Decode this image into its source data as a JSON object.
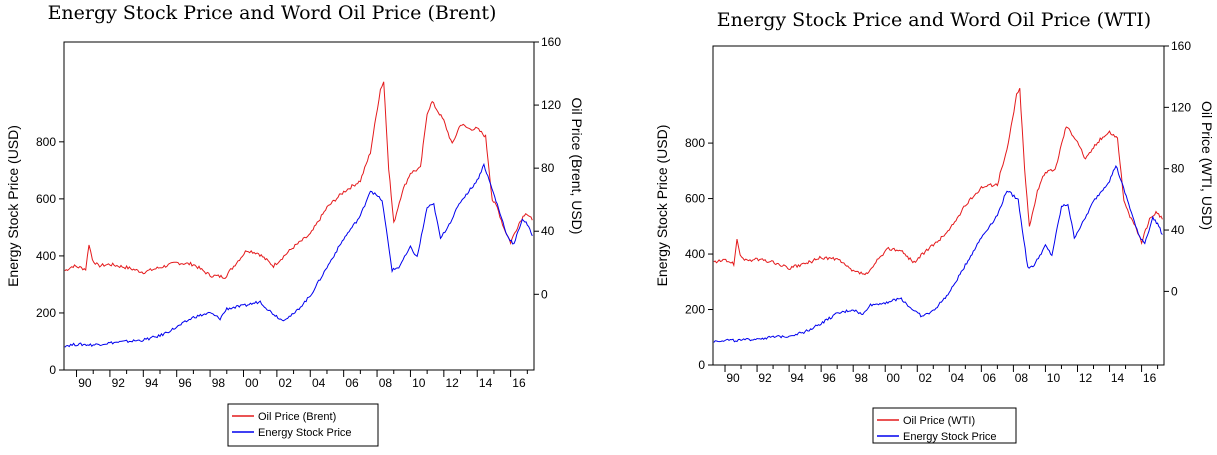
{
  "colors": {
    "oil": "#e41a1c",
    "stock": "#0000ee",
    "frame": "#000000"
  },
  "chart_data": [
    {
      "type": "line",
      "title": "Energy Stock Price and Word Oil Price (Brent)",
      "ylabel": "Energy Stock Price (USD)",
      "y2label": "Oil Price (Brent, USD)",
      "x_ticks": [
        "90",
        "92",
        "94",
        "96",
        "98",
        "00",
        "02",
        "04",
        "06",
        "08",
        "10",
        "12",
        "14",
        "16"
      ],
      "y_ticks": [
        "0",
        "200",
        "400",
        "600",
        "800"
      ],
      "y2_ticks": [
        "0",
        "40",
        "80",
        "120",
        "160"
      ],
      "ylim": [
        0,
        1150
      ],
      "y2lim": [
        -48,
        160
      ],
      "xlim": [
        1989.25,
        2017.4
      ],
      "legend_position": "bottom",
      "series": [
        {
          "name": "Oil Price (Brent)",
          "axis": "right",
          "points": [
            [
              1989.3,
              15
            ],
            [
              1989.8,
              18
            ],
            [
              1990.2,
              17
            ],
            [
              1990.55,
              16
            ],
            [
              1990.75,
              32
            ],
            [
              1990.95,
              22
            ],
            [
              1991.3,
              18
            ],
            [
              1992,
              19
            ],
            [
              1993,
              17
            ],
            [
              1994,
              14
            ],
            [
              1995,
              17
            ],
            [
              1996,
              20
            ],
            [
              1997,
              19
            ],
            [
              1998,
              12
            ],
            [
              1998.9,
              11
            ],
            [
              1999.5,
              19
            ],
            [
              2000.2,
              28
            ],
            [
              2000.9,
              26
            ],
            [
              2001.8,
              18
            ],
            [
              2002.5,
              25
            ],
            [
              2003,
              30
            ],
            [
              2004,
              38
            ],
            [
              2005,
              55
            ],
            [
              2006,
              65
            ],
            [
              2007,
              72
            ],
            [
              2007.6,
              90
            ],
            [
              2008.2,
              130
            ],
            [
              2008.4,
              135
            ],
            [
              2008.7,
              80
            ],
            [
              2009,
              45
            ],
            [
              2009.5,
              65
            ],
            [
              2010,
              77
            ],
            [
              2010.6,
              80
            ],
            [
              2011,
              115
            ],
            [
              2011.3,
              122
            ],
            [
              2012,
              110
            ],
            [
              2012.5,
              95
            ],
            [
              2013,
              108
            ],
            [
              2013.5,
              105
            ],
            [
              2014,
              105
            ],
            [
              2014.5,
              100
            ],
            [
              2014.9,
              60
            ],
            [
              2015.2,
              55
            ],
            [
              2015.6,
              42
            ],
            [
              2016,
              33
            ],
            [
              2016.5,
              45
            ],
            [
              2016.9,
              52
            ],
            [
              2017.3,
              47
            ]
          ]
        },
        {
          "name": "Energy Stock Price",
          "axis": "left",
          "points": [
            [
              1989.3,
              85
            ],
            [
              1990,
              90
            ],
            [
              1991,
              88
            ],
            [
              1992,
              95
            ],
            [
              1993,
              100
            ],
            [
              1994,
              105
            ],
            [
              1995,
              120
            ],
            [
              1996,
              150
            ],
            [
              1997,
              185
            ],
            [
              1998,
              200
            ],
            [
              1998.6,
              180
            ],
            [
              1999,
              215
            ],
            [
              2000,
              225
            ],
            [
              2001,
              240
            ],
            [
              2001.5,
              210
            ],
            [
              2002.3,
              175
            ],
            [
              2003,
              195
            ],
            [
              2004,
              260
            ],
            [
              2005,
              360
            ],
            [
              2006,
              460
            ],
            [
              2007,
              540
            ],
            [
              2007.6,
              630
            ],
            [
              2008.3,
              595
            ],
            [
              2008.9,
              350
            ],
            [
              2009.3,
              360
            ],
            [
              2010,
              430
            ],
            [
              2010.4,
              395
            ],
            [
              2011,
              570
            ],
            [
              2011.4,
              580
            ],
            [
              2011.8,
              460
            ],
            [
              2012.4,
              520
            ],
            [
              2013,
              590
            ],
            [
              2014,
              665
            ],
            [
              2014.4,
              720
            ],
            [
              2014.8,
              650
            ],
            [
              2015.2,
              580
            ],
            [
              2015.8,
              470
            ],
            [
              2016.2,
              440
            ],
            [
              2016.7,
              530
            ],
            [
              2017,
              510
            ],
            [
              2017.3,
              470
            ]
          ]
        }
      ]
    },
    {
      "type": "line",
      "title": "Energy Stock Price and Word Oil Price (WTI)",
      "ylabel": "Energy Stock Price (USD)",
      "y2label": "Oil Price (WTI, USD)",
      "x_ticks": [
        "90",
        "92",
        "94",
        "96",
        "98",
        "00",
        "02",
        "04",
        "06",
        "08",
        "10",
        "12",
        "14",
        "16"
      ],
      "y_ticks": [
        "0",
        "200",
        "400",
        "600",
        "800"
      ],
      "y2_ticks": [
        "0",
        "40",
        "80",
        "120",
        "160"
      ],
      "ylim": [
        0,
        1150
      ],
      "y2lim": [
        -48,
        160
      ],
      "xlim": [
        1989.25,
        2017.4
      ],
      "legend_position": "bottom",
      "series": [
        {
          "name": "Oil Price (WTI)",
          "axis": "right",
          "points": [
            [
              1989.3,
              19
            ],
            [
              1989.8,
              20
            ],
            [
              1990.2,
              20
            ],
            [
              1990.55,
              18
            ],
            [
              1990.75,
              33
            ],
            [
              1990.95,
              24
            ],
            [
              1991.3,
              20
            ],
            [
              1992,
              21
            ],
            [
              1993,
              19
            ],
            [
              1994,
              15
            ],
            [
              1995,
              18
            ],
            [
              1996,
              22
            ],
            [
              1997,
              21
            ],
            [
              1998,
              13
            ],
            [
              1998.9,
              11
            ],
            [
              1999.5,
              20
            ],
            [
              2000.2,
              28
            ],
            [
              2000.9,
              27
            ],
            [
              2001.8,
              19
            ],
            [
              2002.5,
              26
            ],
            [
              2003,
              30
            ],
            [
              2004,
              40
            ],
            [
              2005,
              56
            ],
            [
              2006,
              68
            ],
            [
              2007,
              70
            ],
            [
              2007.6,
              92
            ],
            [
              2008.2,
              128
            ],
            [
              2008.4,
              132
            ],
            [
              2008.7,
              80
            ],
            [
              2009,
              42
            ],
            [
              2009.5,
              66
            ],
            [
              2010,
              78
            ],
            [
              2010.6,
              79
            ],
            [
              2011,
              96
            ],
            [
              2011.3,
              108
            ],
            [
              2012,
              98
            ],
            [
              2012.5,
              86
            ],
            [
              2013,
              94
            ],
            [
              2013.5,
              100
            ],
            [
              2014,
              104
            ],
            [
              2014.5,
              100
            ],
            [
              2014.9,
              59
            ],
            [
              2015.2,
              50
            ],
            [
              2015.6,
              43
            ],
            [
              2016,
              32
            ],
            [
              2016.5,
              47
            ],
            [
              2016.9,
              52
            ],
            [
              2017.3,
              47
            ]
          ]
        },
        {
          "name": "Energy Stock Price",
          "axis": "left",
          "points": [
            [
              1989.3,
              85
            ],
            [
              1990,
              90
            ],
            [
              1991,
              88
            ],
            [
              1992,
              95
            ],
            [
              1993,
              100
            ],
            [
              1994,
              105
            ],
            [
              1995,
              120
            ],
            [
              1996,
              150
            ],
            [
              1997,
              185
            ],
            [
              1998,
              200
            ],
            [
              1998.6,
              180
            ],
            [
              1999,
              215
            ],
            [
              2000,
              225
            ],
            [
              2001,
              240
            ],
            [
              2001.5,
              210
            ],
            [
              2002.3,
              175
            ],
            [
              2003,
              195
            ],
            [
              2004,
              260
            ],
            [
              2005,
              360
            ],
            [
              2006,
              460
            ],
            [
              2007,
              540
            ],
            [
              2007.6,
              630
            ],
            [
              2008.3,
              595
            ],
            [
              2008.9,
              350
            ],
            [
              2009.3,
              360
            ],
            [
              2010,
              430
            ],
            [
              2010.4,
              395
            ],
            [
              2011,
              570
            ],
            [
              2011.4,
              580
            ],
            [
              2011.8,
              460
            ],
            [
              2012.4,
              520
            ],
            [
              2013,
              590
            ],
            [
              2014,
              665
            ],
            [
              2014.4,
              720
            ],
            [
              2014.8,
              650
            ],
            [
              2015.2,
              580
            ],
            [
              2015.8,
              470
            ],
            [
              2016.2,
              440
            ],
            [
              2016.7,
              530
            ],
            [
              2017,
              510
            ],
            [
              2017.3,
              470
            ]
          ]
        }
      ]
    }
  ]
}
